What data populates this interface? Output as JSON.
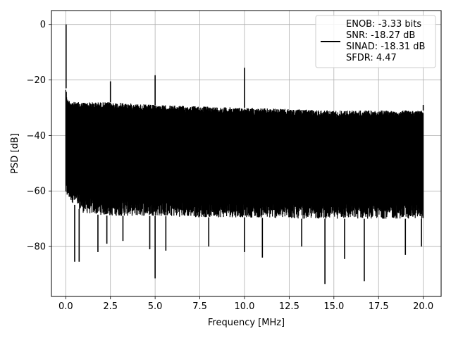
{
  "chart_data": {
    "type": "line",
    "xlabel": "Frequency [MHz]",
    "ylabel": "PSD [dB]",
    "xlim": [
      -0.8,
      21.0
    ],
    "ylim": [
      -98,
      5
    ],
    "xticks": [
      0.0,
      2.5,
      5.0,
      7.5,
      10.0,
      12.5,
      15.0,
      17.5,
      20.0
    ],
    "xtick_labels": [
      "0.0",
      "2.5",
      "5.0",
      "7.5",
      "10.0",
      "12.5",
      "15.0",
      "17.5",
      "20.0"
    ],
    "yticks": [
      0,
      -20,
      -40,
      -60,
      -80
    ],
    "ytick_labels": [
      "0",
      "−20",
      "−40",
      "−60",
      "−80"
    ],
    "grid": true,
    "legend_position": "top-right",
    "series": [
      {
        "name": "",
        "color": "#000000",
        "legend_lines": [
          "ENOB: -3.33 bits",
          "SNR: -18.27 dB",
          "SINAD: -18.31 dB",
          "SFDR: 4.47"
        ],
        "noise_floor_top": {
          "x": [
            0.0,
            0.1,
            0.5,
            1.0,
            2.5,
            5.0,
            7.5,
            10.0,
            12.5,
            15.0,
            17.5,
            20.0
          ],
          "y": [
            -22,
            -27,
            -28,
            -28,
            -28,
            -29,
            -29.5,
            -30,
            -30.5,
            -31,
            -31,
            -31
          ]
        },
        "noise_floor_bottom": {
          "x": [
            0.0,
            1.0,
            2.5,
            5.0,
            7.5,
            10.0,
            12.5,
            15.0,
            17.5,
            20.0
          ],
          "y": [
            -62,
            -68,
            -69,
            -69,
            -69.5,
            -69.5,
            -70,
            -70,
            -70,
            -70
          ]
        },
        "peaks": [
          {
            "x": 0.02,
            "y": 0.0
          },
          {
            "x": 2.5,
            "y": -20.5
          },
          {
            "x": 5.0,
            "y": -18.3
          },
          {
            "x": 10.0,
            "y": -15.6
          },
          {
            "x": 20.0,
            "y": -29.0
          }
        ],
        "dips": [
          {
            "x": 0.5,
            "y": -85.5
          },
          {
            "x": 0.75,
            "y": -85.5
          },
          {
            "x": 1.8,
            "y": -82
          },
          {
            "x": 2.3,
            "y": -79
          },
          {
            "x": 3.2,
            "y": -78
          },
          {
            "x": 4.7,
            "y": -81
          },
          {
            "x": 5.0,
            "y": -91.5
          },
          {
            "x": 5.6,
            "y": -81.5
          },
          {
            "x": 8.0,
            "y": -80
          },
          {
            "x": 10.0,
            "y": -82
          },
          {
            "x": 11.0,
            "y": -84
          },
          {
            "x": 13.2,
            "y": -80
          },
          {
            "x": 14.5,
            "y": -93.5
          },
          {
            "x": 15.6,
            "y": -84.5
          },
          {
            "x": 16.7,
            "y": -92.5
          },
          {
            "x": 19.0,
            "y": -83
          },
          {
            "x": 19.9,
            "y": -80
          }
        ]
      }
    ]
  }
}
